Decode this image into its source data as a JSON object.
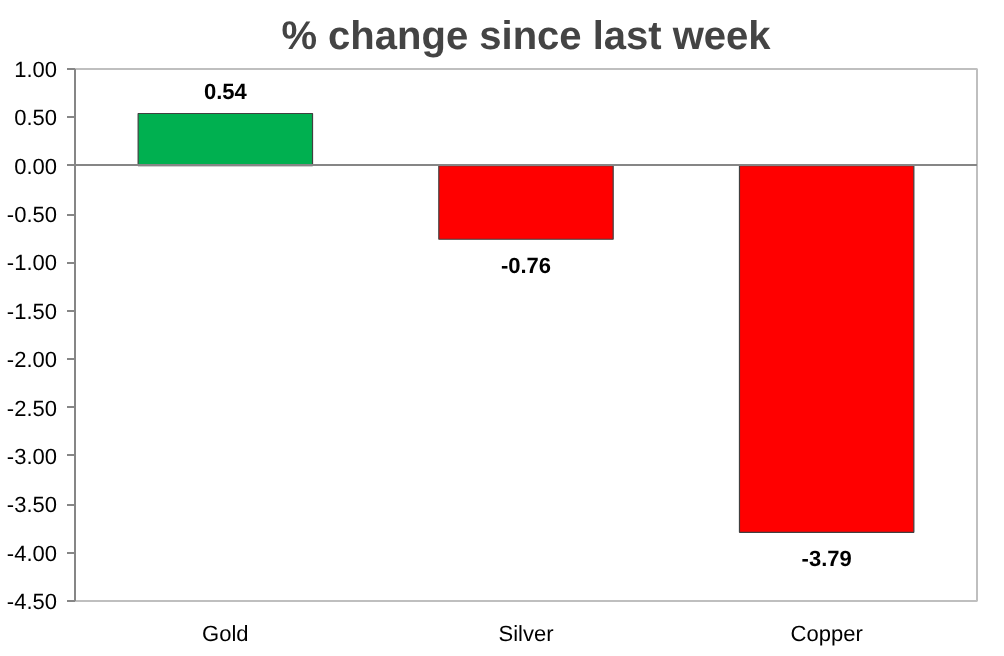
{
  "chart_data": {
    "type": "bar",
    "title": "% change since last week",
    "categories": [
      "Gold",
      "Silver",
      "Copper"
    ],
    "values": [
      0.54,
      -0.76,
      -3.79
    ],
    "colors": [
      "#00b050",
      "#ff0000",
      "#ff0000"
    ],
    "ylim": [
      -4.5,
      1.0
    ],
    "yticks": [
      {
        "value": -4.5,
        "label": "-4.50"
      },
      {
        "value": -4.0,
        "label": "-4.00"
      },
      {
        "value": -3.5,
        "label": "-3.50"
      },
      {
        "value": -3.0,
        "label": "-3.00"
      },
      {
        "value": -2.5,
        "label": "-2.50"
      },
      {
        "value": -2.0,
        "label": "-2.00"
      },
      {
        "value": -1.5,
        "label": "-1.50"
      },
      {
        "value": -1.0,
        "label": "-1.00"
      },
      {
        "value": -0.5,
        "label": "-0.50"
      },
      {
        "value": 0.0,
        "label": "0.00"
      },
      {
        "value": 0.5,
        "label": "0.50"
      },
      {
        "value": 1.0,
        "label": "1.00"
      }
    ],
    "data_labels": true
  }
}
